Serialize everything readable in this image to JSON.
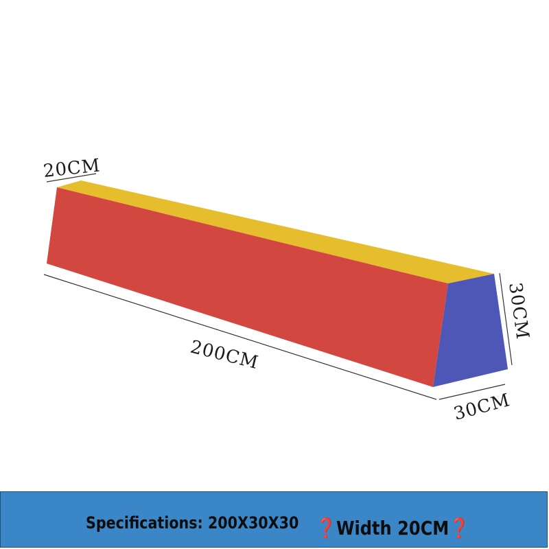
{
  "product": {
    "colors": {
      "front_face": "#d2473f",
      "top_face": "#e6bd2d",
      "end_face": "#4f57b6",
      "background": "#ffffff"
    },
    "dimensions": {
      "top_width": "20CM",
      "length": "200CM",
      "height": "30CM",
      "base_width": "30CM"
    }
  },
  "footer": {
    "background_color": "#3b86c6",
    "specifications": "Specifications: 200X30X30",
    "width_note": "❓Width 20CM❓"
  }
}
